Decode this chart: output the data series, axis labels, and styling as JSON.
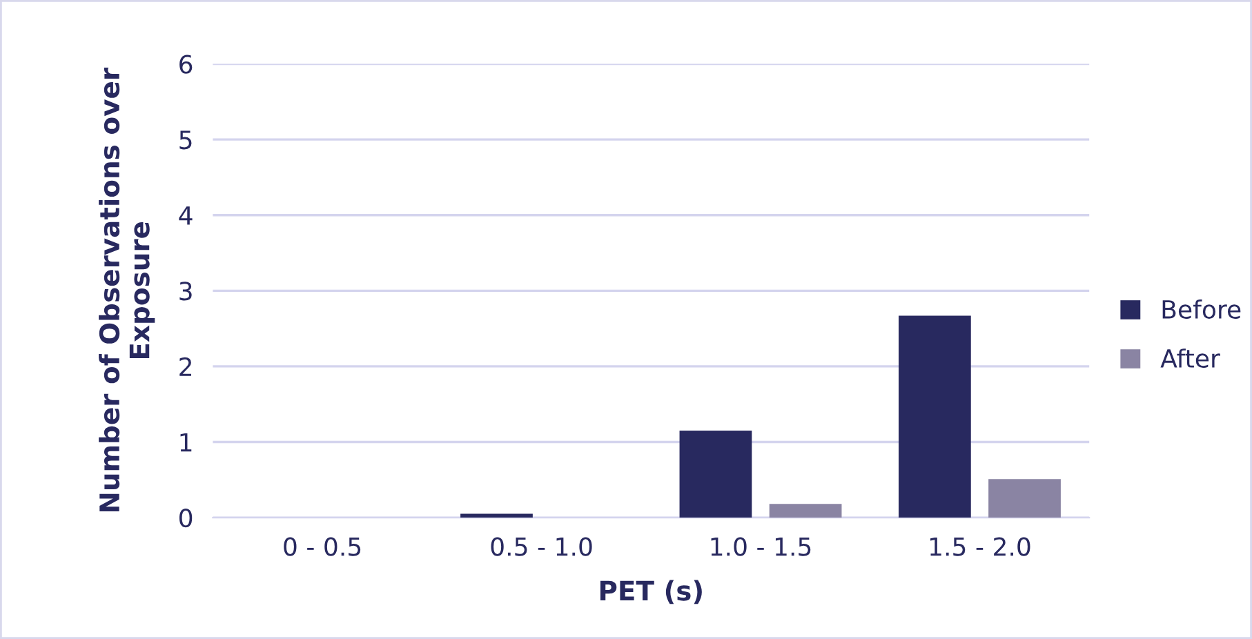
{
  "chart_data": {
    "type": "bar",
    "xlabel": "PET (s)",
    "ylabel": "Number of Observations over Exposure",
    "categories": [
      "0 - 0.5",
      "0.5 - 1.0",
      "1.0 - 1.5",
      "1.5 - 2.0"
    ],
    "series": [
      {
        "name": "Before",
        "color": "#28295f",
        "values": [
          0,
          0.05,
          1.15,
          2.67
        ]
      },
      {
        "name": "After",
        "color": "#8a84a3",
        "values": [
          0,
          0,
          0.18,
          0.51
        ]
      }
    ],
    "ylim": [
      0,
      6
    ],
    "yticks": [
      0,
      1,
      2,
      3,
      4,
      5,
      6
    ],
    "grid": "y",
    "legend": "right"
  }
}
